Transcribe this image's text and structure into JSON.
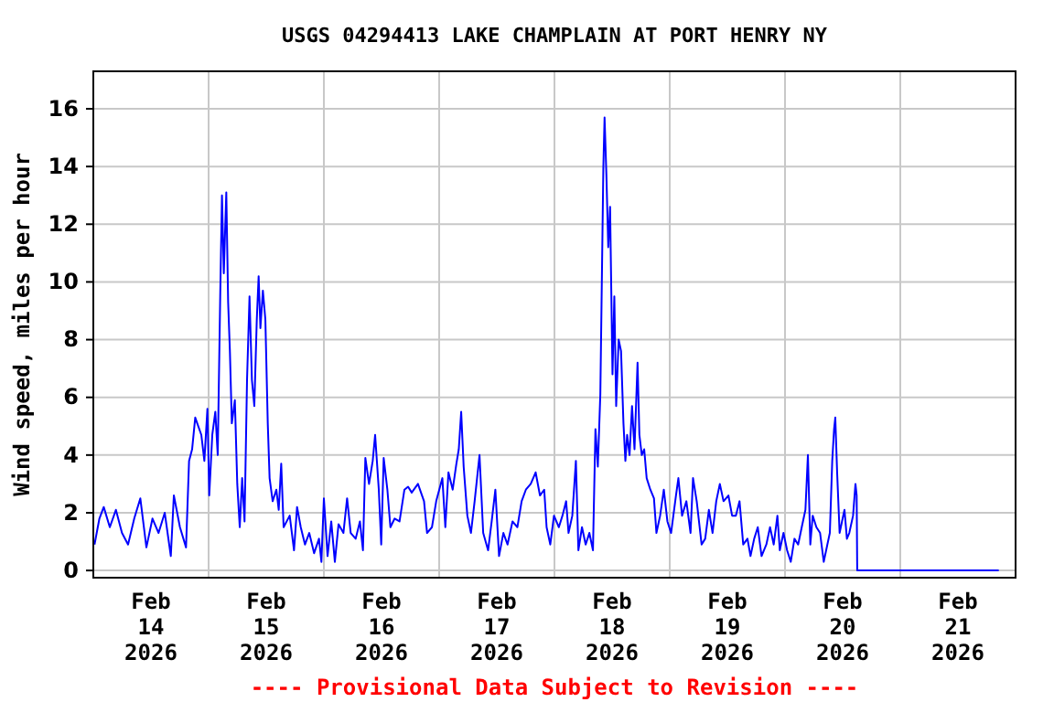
{
  "chart_data": {
    "type": "line",
    "title": "USGS 04294413 LAKE CHAMPLAIN AT PORT HENRY NY",
    "ylabel": "Wind speed, miles per hour",
    "annotations": [
      "---- Provisional Data Subject to Revision ----"
    ],
    "xlim": [
      "2026-02-14",
      "2026-02-22"
    ],
    "xticks": [
      {
        "value": "2026-02-14T12:00",
        "label": "Feb\n14\n2026"
      },
      {
        "value": "2026-02-15T12:00",
        "label": "Feb\n15\n2026"
      },
      {
        "value": "2026-02-16T12:00",
        "label": "Feb\n16\n2026"
      },
      {
        "value": "2026-02-17T12:00",
        "label": "Feb\n17\n2026"
      },
      {
        "value": "2026-02-18T12:00",
        "label": "Feb\n18\n2026"
      },
      {
        "value": "2026-02-19T12:00",
        "label": "Feb\n19\n2026"
      },
      {
        "value": "2026-02-20T12:00",
        "label": "Feb\n20\n2026"
      },
      {
        "value": "2026-02-21T12:00",
        "label": "Feb\n21\n2026"
      },
      {
        "value": "2026-02-15",
        "label": null
      },
      {
        "value": "2026-02-16",
        "label": null
      },
      {
        "value": "2026-02-17",
        "label": null
      },
      {
        "value": "2026-02-18",
        "label": null
      },
      {
        "value": "2026-02-19",
        "label": null
      },
      {
        "value": "2026-02-20",
        "label": null
      },
      {
        "value": "2026-02-21",
        "label": null
      }
    ],
    "ylim": [
      -0.25,
      17.3
    ],
    "yticks": [
      0,
      2,
      4,
      6,
      8,
      10,
      12,
      14,
      16
    ],
    "grid": true,
    "line_style": "solid",
    "series": [
      {
        "color": "#0000ff",
        "x": [
          "2026-02-14T00:15",
          "2026-02-14T01:16",
          "2026-02-14T02:10",
          "2026-02-14T03:26",
          "2026-02-14T04:42",
          "2026-02-14T05:58",
          "2026-02-14T07:14",
          "2026-02-14T08:31",
          "2026-02-14T09:47",
          "2026-02-14T11:03",
          "2026-02-14T12:19",
          "2026-02-14T13:35",
          "2026-02-14T14:52",
          "2026-02-14T16:08",
          "2026-02-14T16:46",
          "2026-02-14T18:02",
          "2026-02-14T19:18",
          "2026-02-14T19:56",
          "2026-02-14T20:34",
          "2026-02-14T21:13",
          "2026-02-14T22:29",
          "2026-02-14T23:07",
          "2026-02-14T23:45",
          "2026-02-15T00:08",
          "2026-02-15T00:46",
          "2026-02-15T01:24",
          "2026-02-15T01:54",
          "2026-02-15T02:25",
          "2026-02-15T02:47",
          "2026-02-15T03:10",
          "2026-02-15T03:41",
          "2026-02-15T04:04",
          "2026-02-15T04:26",
          "2026-02-15T04:50",
          "2026-02-15T05:28",
          "2026-02-15T05:58",
          "2026-02-15T06:29",
          "2026-02-15T06:59",
          "2026-02-15T07:29",
          "2026-02-15T08:00",
          "2026-02-15T08:31",
          "2026-02-15T09:01",
          "2026-02-15T09:31",
          "2026-02-15T10:02",
          "2026-02-15T10:25",
          "2026-02-15T10:47",
          "2026-02-15T11:18",
          "2026-02-15T11:49",
          "2026-02-15T12:19",
          "2026-02-15T12:42",
          "2026-02-15T13:20",
          "2026-02-15T14:06",
          "2026-02-15T14:36",
          "2026-02-15T15:07",
          "2026-02-15T15:37",
          "2026-02-15T16:53",
          "2026-02-15T17:47",
          "2026-02-15T18:25",
          "2026-02-15T19:11",
          "2026-02-15T20:04",
          "2026-02-15T20:57",
          "2026-02-15T21:58",
          "2026-02-15T22:59",
          "2026-02-15T23:29",
          "2026-02-16T00:00",
          "2026-02-16T00:46",
          "2026-02-16T01:32",
          "2026-02-16T02:17",
          "2026-02-16T03:03",
          "2026-02-16T04:04",
          "2026-02-16T04:50",
          "2026-02-16T05:35",
          "2026-02-16T06:37",
          "2026-02-16T07:30",
          "2026-02-16T08:08",
          "2026-02-16T08:38",
          "2026-02-16T09:24",
          "2026-02-16T10:10",
          "2026-02-16T10:40",
          "2026-02-16T11:26",
          "2026-02-16T11:56",
          "2026-02-16T12:27",
          "2026-02-16T13:13",
          "2026-02-16T13:51",
          "2026-02-16T14:44",
          "2026-02-16T15:45",
          "2026-02-16T16:46",
          "2026-02-16T17:32",
          "2026-02-16T18:17",
          "2026-02-16T19:35",
          "2026-02-16T20:51",
          "2026-02-16T21:29",
          "2026-02-16T22:30",
          "2026-02-16T23:23",
          "2026-02-17T00:40",
          "2026-02-17T01:17",
          "2026-02-17T01:56",
          "2026-02-17T02:49",
          "2026-02-17T03:35",
          "2026-02-17T04:05",
          "2026-02-17T04:35",
          "2026-02-17T05:06",
          "2026-02-17T05:52",
          "2026-02-17T06:37",
          "2026-02-17T07:23",
          "2026-02-17T08:24",
          "2026-02-17T09:10",
          "2026-02-17T10:11",
          "2026-02-17T10:56",
          "2026-02-17T11:42",
          "2026-02-17T12:28",
          "2026-02-17T13:22",
          "2026-02-17T14:14",
          "2026-02-17T15:16",
          "2026-02-17T16:17",
          "2026-02-17T17:10",
          "2026-02-17T18:03",
          "2026-02-17T19:04",
          "2026-02-17T20:05",
          "2026-02-17T20:59",
          "2026-02-17T21:52",
          "2026-02-17T22:22",
          "2026-02-17T23:08",
          "2026-02-17T23:54",
          "2026-02-18T00:55",
          "2026-02-18T01:40",
          "2026-02-18T02:26",
          "2026-02-18T02:56",
          "2026-02-18T03:43",
          "2026-02-18T04:28",
          "2026-02-18T04:59",
          "2026-02-18T05:44",
          "2026-02-18T06:30",
          "2026-02-18T07:16",
          "2026-02-18T08:01",
          "2026-02-18T08:32",
          "2026-02-18T09:02",
          "2026-02-18T09:33",
          "2026-02-18T09:48",
          "2026-02-18T10:11",
          "2026-02-18T10:26",
          "2026-02-18T10:49",
          "2026-02-18T11:12",
          "2026-02-18T11:35",
          "2026-02-18T11:50",
          "2026-02-18T12:05",
          "2026-02-18T12:28",
          "2026-02-18T12:51",
          "2026-02-18T13:22",
          "2026-02-18T13:52",
          "2026-02-18T14:22",
          "2026-02-18T14:46",
          "2026-02-18T15:08",
          "2026-02-18T15:38",
          "2026-02-18T16:09",
          "2026-02-18T16:40",
          "2026-02-18T17:18",
          "2026-02-18T17:41",
          "2026-02-18T18:11",
          "2026-02-18T18:41",
          "2026-02-18T19:12",
          "2026-02-18T19:58",
          "2026-02-18T20:43",
          "2026-02-18T21:14",
          "2026-02-18T22:00",
          "2026-02-18T22:46",
          "2026-02-18T23:31",
          "2026-02-19T00:17",
          "2026-02-19T01:18",
          "2026-02-19T01:48",
          "2026-02-19T02:34",
          "2026-02-19T03:28",
          "2026-02-19T04:20",
          "2026-02-19T04:51",
          "2026-02-19T05:37",
          "2026-02-19T06:38",
          "2026-02-19T07:23",
          "2026-02-19T08:09",
          "2026-02-19T08:55",
          "2026-02-19T09:41",
          "2026-02-19T10:26",
          "2026-02-19T11:12",
          "2026-02-19T12:13",
          "2026-02-19T12:59",
          "2026-02-19T13:46",
          "2026-02-19T14:32",
          "2026-02-19T15:18",
          "2026-02-19T16:11",
          "2026-02-19T16:49",
          "2026-02-19T17:35",
          "2026-02-19T18:20",
          "2026-02-19T19:07",
          "2026-02-19T20:07",
          "2026-02-19T20:53",
          "2026-02-19T21:39",
          "2026-02-19T22:25",
          "2026-02-19T22:55",
          "2026-02-19T23:41",
          "2026-02-20T00:26",
          "2026-02-20T01:12",
          "2026-02-20T01:58",
          "2026-02-20T02:44",
          "2026-02-20T03:29",
          "2026-02-20T04:15",
          "2026-02-20T04:46",
          "2026-02-20T05:16",
          "2026-02-20T05:46",
          "2026-02-20T06:32",
          "2026-02-20T07:18",
          "2026-02-20T08:04",
          "2026-02-20T08:49",
          "2026-02-20T09:20",
          "2026-02-20T09:50",
          "2026-02-20T10:13",
          "2026-02-20T10:28",
          "2026-02-20T10:51",
          "2026-02-20T11:22",
          "2026-02-20T11:52",
          "2026-02-20T12:23",
          "2026-02-20T12:53",
          "2026-02-20T13:23",
          "2026-02-20T14:10",
          "2026-02-20T14:40",
          "2026-02-20T14:55",
          "2026-02-20T15:02",
          "2026-02-21T20:30"
        ],
        "values": [
          0.9,
          1.8,
          2.2,
          1.5,
          2.1,
          1.3,
          0.9,
          1.8,
          2.5,
          0.8,
          1.8,
          1.3,
          2.0,
          0.5,
          2.6,
          1.5,
          0.8,
          3.8,
          4.2,
          5.3,
          4.7,
          3.8,
          5.6,
          2.6,
          4.7,
          5.5,
          4.0,
          9.5,
          13.0,
          10.3,
          13.1,
          9.3,
          7.6,
          5.1,
          5.9,
          3.0,
          1.5,
          3.2,
          1.7,
          6.6,
          9.5,
          6.6,
          5.7,
          8.7,
          10.2,
          8.4,
          9.7,
          8.7,
          5.1,
          3.2,
          2.4,
          2.8,
          2.1,
          3.7,
          1.5,
          1.9,
          0.7,
          2.2,
          1.5,
          0.9,
          1.3,
          0.6,
          1.1,
          0.3,
          2.5,
          0.5,
          1.7,
          0.3,
          1.6,
          1.3,
          2.5,
          1.3,
          1.1,
          1.7,
          0.7,
          3.9,
          3.0,
          3.8,
          4.7,
          2.8,
          0.9,
          3.9,
          2.8,
          1.5,
          1.8,
          1.7,
          2.8,
          2.9,
          2.7,
          3.0,
          2.4,
          1.3,
          1.5,
          2.4,
          3.2,
          1.5,
          3.4,
          2.8,
          3.7,
          4.2,
          5.5,
          3.6,
          1.9,
          1.3,
          2.4,
          4.0,
          1.3,
          0.7,
          1.7,
          2.8,
          0.5,
          1.3,
          0.9,
          1.7,
          1.5,
          2.4,
          2.8,
          3.0,
          3.4,
          2.6,
          2.8,
          1.5,
          0.9,
          1.9,
          1.5,
          1.9,
          2.4,
          1.3,
          1.9,
          3.8,
          0.7,
          1.5,
          0.9,
          1.3,
          0.7,
          4.9,
          3.6,
          6.1,
          9.2,
          14.0,
          15.7,
          13.7,
          11.2,
          12.6,
          9.7,
          6.8,
          9.5,
          5.7,
          8.0,
          7.6,
          5.1,
          3.8,
          4.7,
          4.0,
          5.7,
          4.2,
          7.2,
          4.7,
          4.0,
          4.2,
          3.2,
          2.8,
          2.5,
          1.3,
          1.9,
          2.8,
          1.7,
          1.3,
          2.6,
          3.2,
          1.9,
          2.4,
          1.3,
          3.2,
          2.4,
          0.9,
          1.1,
          2.1,
          1.3,
          2.4,
          3.0,
          2.4,
          2.6,
          1.9,
          1.9,
          2.4,
          0.9,
          1.1,
          0.5,
          1.1,
          1.5,
          0.5,
          0.9,
          1.5,
          0.9,
          1.9,
          0.7,
          1.3,
          0.7,
          0.3,
          1.1,
          0.9,
          1.5,
          2.1,
          4.0,
          0.9,
          1.9,
          1.5,
          1.3,
          0.3,
          0.9,
          1.3,
          3.8,
          4.9,
          5.3,
          3.4,
          1.3,
          1.7,
          2.1,
          1.1,
          1.3,
          1.9,
          3.0,
          2.6,
          0,
          0
        ]
      }
    ]
  }
}
